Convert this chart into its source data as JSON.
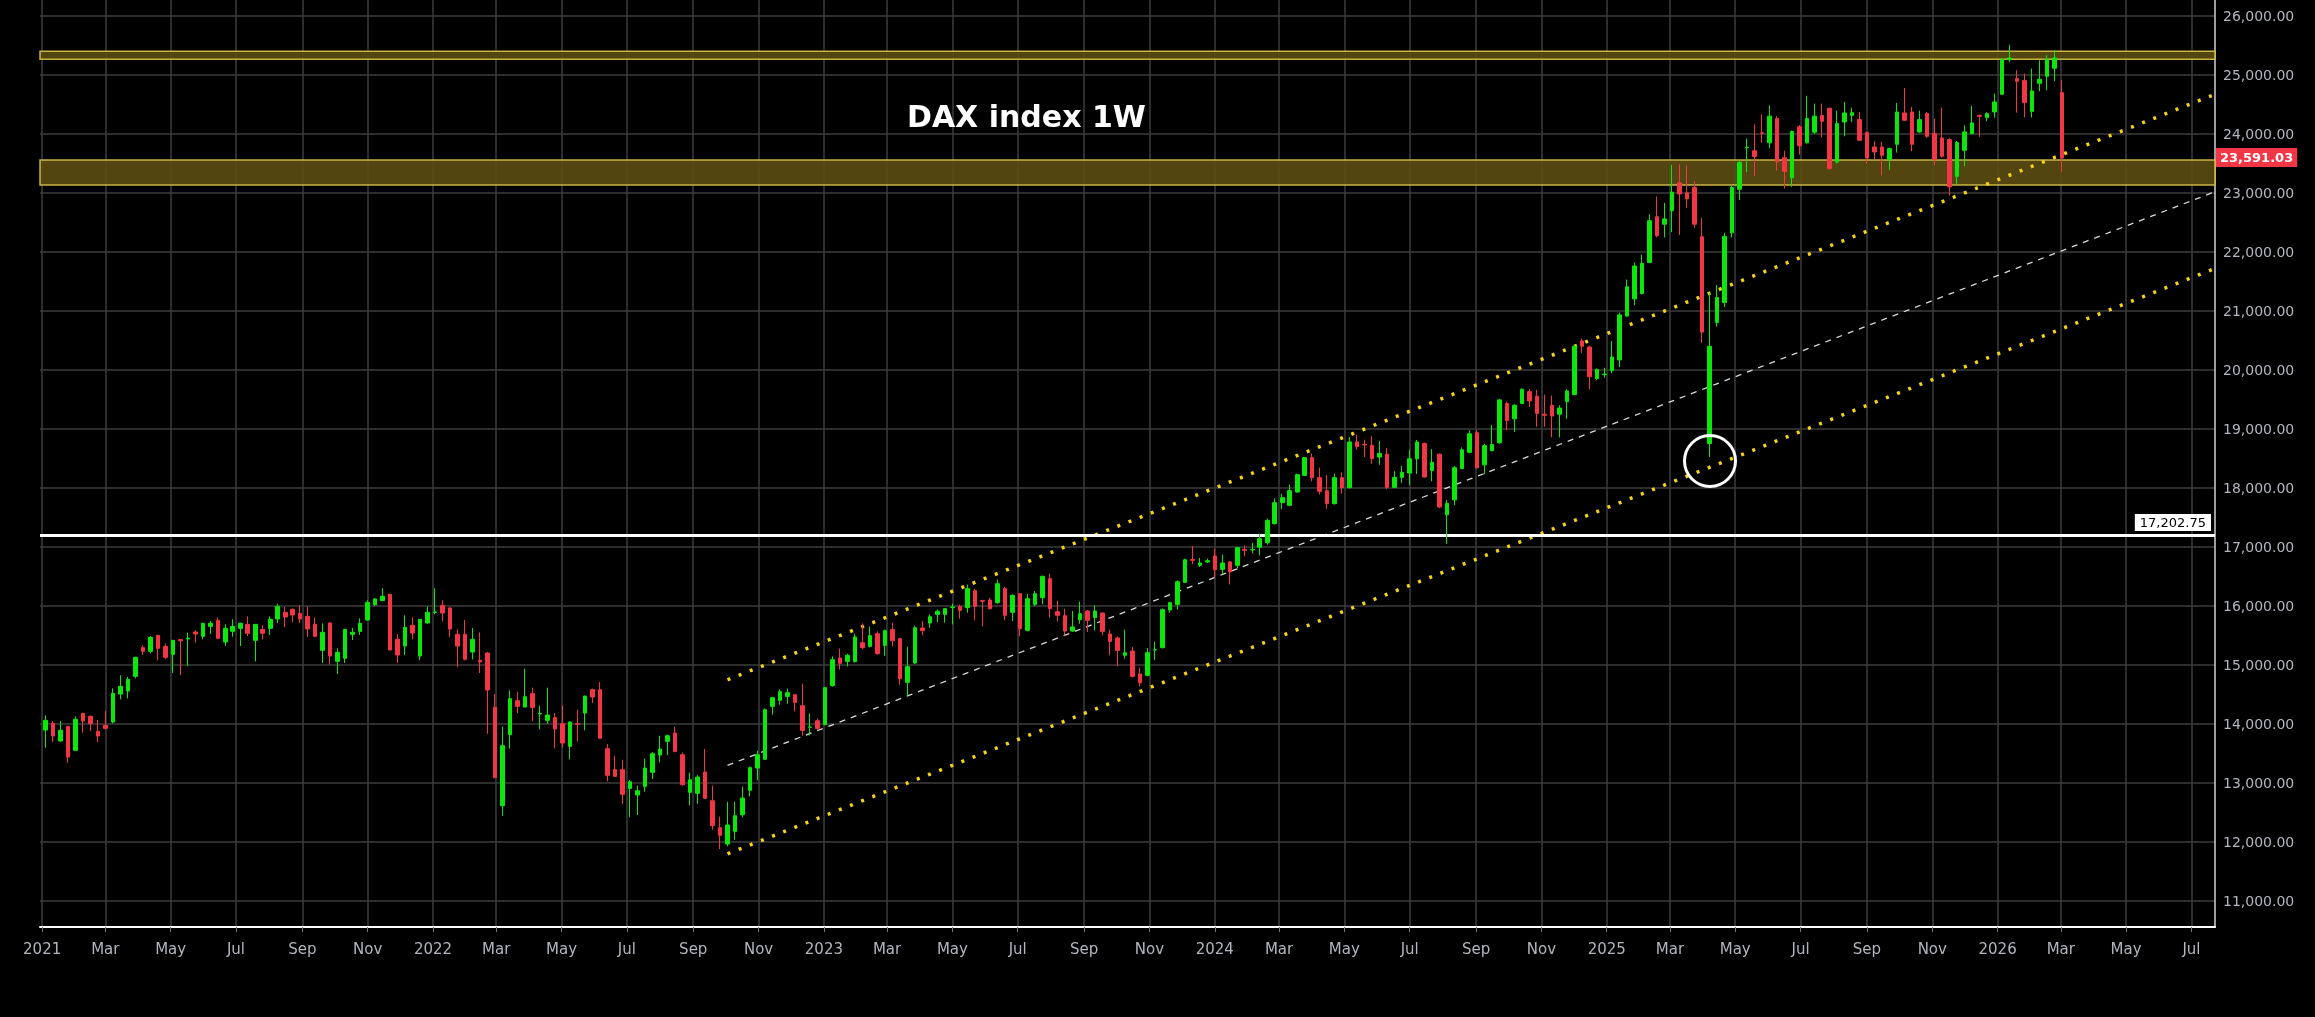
{
  "chart_data": {
    "type": "candlestick",
    "title": "DAX index 1W",
    "x": [
      "2021-01-04",
      "2021-01-11",
      "2021-01-18",
      "2021-01-25",
      "2021-02-01",
      "2021-02-08",
      "2021-02-15",
      "2021-02-22",
      "2021-03-01",
      "2021-03-08",
      "2021-03-15",
      "2021-03-22",
      "2021-03-29",
      "2021-04-05",
      "2021-04-12",
      "2021-04-19",
      "2021-04-26",
      "2021-05-03",
      "2021-05-10",
      "2021-05-17",
      "2021-05-24",
      "2021-05-31",
      "2021-06-07",
      "2021-06-14",
      "2021-06-21",
      "2021-06-28",
      "2021-07-05",
      "2021-07-12",
      "2021-07-19",
      "2021-07-26",
      "2021-08-02",
      "2021-08-09",
      "2021-08-16",
      "2021-08-23",
      "2021-08-30",
      "2021-09-06",
      "2021-09-13",
      "2021-09-20",
      "2021-09-27",
      "2021-10-04",
      "2021-10-11",
      "2021-10-18",
      "2021-10-25",
      "2021-11-01",
      "2021-11-08",
      "2021-11-15",
      "2021-11-22",
      "2021-11-29",
      "2021-12-06",
      "2021-12-13",
      "2021-12-20",
      "2021-12-27",
      "2022-01-03",
      "2022-01-10",
      "2022-01-17",
      "2022-01-24",
      "2022-01-31",
      "2022-02-07",
      "2022-02-14",
      "2022-02-21",
      "2022-02-28",
      "2022-03-07",
      "2022-03-14",
      "2022-03-21",
      "2022-03-28",
      "2022-04-04",
      "2022-04-11",
      "2022-04-18",
      "2022-04-25",
      "2022-05-02",
      "2022-05-09",
      "2022-05-16",
      "2022-05-23",
      "2022-05-30",
      "2022-06-06",
      "2022-06-13",
      "2022-06-20",
      "2022-06-27",
      "2022-07-04",
      "2022-07-11",
      "2022-07-18",
      "2022-07-25",
      "2022-08-01",
      "2022-08-08",
      "2022-08-15",
      "2022-08-22",
      "2022-08-29",
      "2022-09-05",
      "2022-09-12",
      "2022-09-19",
      "2022-09-26",
      "2022-10-03",
      "2022-10-10",
      "2022-10-17",
      "2022-10-24",
      "2022-10-31",
      "2022-11-07",
      "2022-11-14",
      "2022-11-21",
      "2022-11-28",
      "2022-12-05",
      "2022-12-12",
      "2022-12-19",
      "2022-12-26",
      "2023-01-02",
      "2023-01-09",
      "2023-01-16",
      "2023-01-23",
      "2023-01-30",
      "2023-02-06",
      "2023-02-13",
      "2023-02-20",
      "2023-02-27",
      "2023-03-06",
      "2023-03-13",
      "2023-03-20",
      "2023-03-27",
      "2023-04-03",
      "2023-04-10",
      "2023-04-17",
      "2023-04-24",
      "2023-05-01",
      "2023-05-08",
      "2023-05-15",
      "2023-05-22",
      "2023-05-29",
      "2023-06-05",
      "2023-06-12",
      "2023-06-19",
      "2023-06-26",
      "2023-07-03",
      "2023-07-10",
      "2023-07-17",
      "2023-07-24",
      "2023-07-31",
      "2023-08-07",
      "2023-08-14",
      "2023-08-21",
      "2023-08-28",
      "2023-09-04",
      "2023-09-11",
      "2023-09-18",
      "2023-09-25",
      "2023-10-02",
      "2023-10-09",
      "2023-10-16",
      "2023-10-23",
      "2023-10-30",
      "2023-11-06",
      "2023-11-13",
      "2023-11-20",
      "2023-11-27",
      "2023-12-04",
      "2023-12-11",
      "2023-12-18",
      "2023-12-25",
      "2024-01-01",
      "2024-01-08",
      "2024-01-15",
      "2024-01-22",
      "2024-01-29",
      "2024-02-05",
      "2024-02-12",
      "2024-02-19",
      "2024-02-26",
      "2024-03-04",
      "2024-03-11",
      "2024-03-18",
      "2024-03-25",
      "2024-04-01",
      "2024-04-08",
      "2024-04-15",
      "2024-04-22",
      "2024-04-29",
      "2024-05-06",
      "2024-05-13",
      "2024-05-20",
      "2024-05-27",
      "2024-06-03",
      "2024-06-10",
      "2024-06-17",
      "2024-06-24",
      "2024-07-01",
      "2024-07-08",
      "2024-07-15",
      "2024-07-22",
      "2024-07-29",
      "2024-08-05",
      "2024-08-12",
      "2024-08-19",
      "2024-08-26",
      "2024-09-02",
      "2024-09-09",
      "2024-09-16",
      "2024-09-23",
      "2024-09-30",
      "2024-10-07",
      "2024-10-14",
      "2024-10-21",
      "2024-10-28",
      "2024-11-04",
      "2024-11-11",
      "2024-11-18",
      "2024-11-25",
      "2024-12-02",
      "2024-12-09",
      "2024-12-16",
      "2024-12-23",
      "2024-12-30",
      "2025-01-06",
      "2025-01-13",
      "2025-01-20",
      "2025-01-27",
      "2025-02-03",
      "2025-02-10",
      "2025-02-17",
      "2025-02-24",
      "2025-03-03",
      "2025-03-10",
      "2025-03-17",
      "2025-03-24",
      "2025-03-31",
      "2025-04-07",
      "2025-04-14",
      "2025-04-21",
      "2025-04-28",
      "2025-05-05",
      "2025-05-12",
      "2025-05-19",
      "2025-05-26",
      "2025-06-02",
      "2025-06-09",
      "2025-06-16",
      "2025-06-23",
      "2025-06-30",
      "2025-07-07",
      "2025-07-14",
      "2025-07-21",
      "2025-07-28",
      "2025-08-04",
      "2025-08-11",
      "2025-08-18",
      "2025-08-25",
      "2025-09-01",
      "2025-09-08",
      "2025-09-15",
      "2025-09-22",
      "2025-09-29",
      "2025-10-06",
      "2025-10-13",
      "2025-10-20",
      "2025-10-27",
      "2025-11-03",
      "2025-11-10",
      "2025-11-17",
      "2025-11-24",
      "2025-12-01",
      "2025-12-08",
      "2025-12-15",
      "2025-12-22",
      "2025-12-29",
      "2026-01-05",
      "2026-01-12",
      "2026-01-19",
      "2026-01-26",
      "2026-02-02",
      "2026-02-09",
      "2026-02-16",
      "2026-02-23",
      "2026-03-02"
    ],
    "ohlc": [
      [
        13898,
        14147,
        13599,
        14062
      ],
      [
        14011,
        14051,
        13695,
        13796
      ],
      [
        13712,
        14051,
        13700,
        13893
      ],
      [
        13960,
        13970,
        13344,
        13440
      ],
      [
        13554,
        14130,
        13540,
        14079
      ],
      [
        14181,
        14190,
        13853,
        14051
      ],
      [
        14130,
        14147,
        13881,
        14006
      ],
      [
        13876,
        14068,
        13695,
        13796
      ],
      [
        13977,
        14220,
        13909,
        13926
      ],
      [
        14034,
        14604,
        14011,
        14520
      ],
      [
        14508,
        14825,
        14418,
        14638
      ],
      [
        14559,
        14797,
        14435,
        14757
      ],
      [
        14808,
        15140,
        14774,
        15130
      ],
      [
        15294,
        15333,
        15169,
        15232
      ],
      [
        15232,
        15491,
        15198,
        15469
      ],
      [
        15503,
        15510,
        15079,
        15282
      ],
      [
        15316,
        15367,
        15102,
        15130
      ],
      [
        15181,
        15420,
        14864,
        15418
      ],
      [
        15430,
        15440,
        14830,
        15410
      ],
      [
        15440,
        15548,
        14983,
        15455
      ],
      [
        15559,
        15593,
        15378,
        15525
      ],
      [
        15486,
        15718,
        15435,
        15706
      ],
      [
        15655,
        15746,
        15525,
        15706
      ],
      [
        15757,
        15808,
        15435,
        15452
      ],
      [
        15390,
        15689,
        15322,
        15621
      ],
      [
        15570,
        15774,
        15480,
        15655
      ],
      [
        15621,
        15718,
        15322,
        15706
      ],
      [
        15689,
        15825,
        15491,
        15537
      ],
      [
        15418,
        15695,
        15062,
        15689
      ],
      [
        15604,
        15672,
        15435,
        15537
      ],
      [
        15621,
        15825,
        15508,
        15774
      ],
      [
        15780,
        16040,
        15712,
        15994
      ],
      [
        15893,
        15983,
        15644,
        15814
      ],
      [
        15943,
        15960,
        15729,
        15847
      ],
      [
        15876,
        16011,
        15712,
        15780
      ],
      [
        15825,
        15994,
        15475,
        15610
      ],
      [
        15689,
        15808,
        15469,
        15486
      ],
      [
        15249,
        15706,
        15034,
        15554
      ],
      [
        15712,
        15723,
        15006,
        15152
      ],
      [
        15062,
        15282,
        14847,
        15215
      ],
      [
        15113,
        15610,
        15034,
        15604
      ],
      [
        15520,
        15627,
        15424,
        15554
      ],
      [
        15570,
        15791,
        15508,
        15706
      ],
      [
        15763,
        16096,
        15751,
        16062
      ],
      [
        16023,
        16136,
        16000,
        16119
      ],
      [
        16090,
        16299,
        16090,
        16164
      ],
      [
        16198,
        16209,
        15250,
        15254
      ],
      [
        15435,
        15525,
        15034,
        15169
      ],
      [
        15322,
        15842,
        15169,
        15638
      ],
      [
        15672,
        15808,
        15435,
        15542
      ],
      [
        15152,
        15780,
        15085,
        15774
      ],
      [
        15712,
        15994,
        15700,
        15893
      ],
      [
        15890,
        16299,
        15860,
        15900
      ],
      [
        16011,
        16096,
        15740,
        15881
      ],
      [
        15966,
        15980,
        15475,
        15610
      ],
      [
        15520,
        15604,
        14966,
        15322
      ],
      [
        15520,
        15763,
        15079,
        15096
      ],
      [
        15220,
        15627,
        15096,
        15435
      ],
      [
        15079,
        15554,
        14864,
        15051
      ],
      [
        15203,
        15220,
        13836,
        14576
      ],
      [
        14282,
        14508,
        13085,
        13090
      ],
      [
        12616,
        13960,
        12446,
        13633
      ],
      [
        13819,
        14570,
        13582,
        14429
      ],
      [
        14395,
        14548,
        14186,
        14299
      ],
      [
        14288,
        14938,
        14280,
        14463
      ],
      [
        14514,
        14616,
        14045,
        14282
      ],
      [
        14170,
        14311,
        13909,
        14180
      ],
      [
        14062,
        14616,
        14005,
        14152
      ],
      [
        14107,
        14186,
        13587,
        13915
      ],
      [
        14005,
        14316,
        13604,
        13678
      ],
      [
        13621,
        14040,
        13401,
        14034
      ],
      [
        14005,
        14243,
        13706,
        13994
      ],
      [
        14186,
        14480,
        13892,
        14474
      ],
      [
        14582,
        14600,
        14356,
        14458
      ],
      [
        14582,
        14712,
        13750,
        13757
      ],
      [
        13582,
        13661,
        13028,
        13130
      ],
      [
        13226,
        13463,
        13100,
        13113
      ],
      [
        13226,
        13395,
        12644,
        12808
      ],
      [
        12909,
        13050,
        12418,
        13022
      ],
      [
        12797,
        12955,
        12457,
        12870
      ],
      [
        12943,
        13412,
        12853,
        13254
      ],
      [
        13181,
        13525,
        13068,
        13497
      ],
      [
        13474,
        13802,
        13350,
        13576
      ],
      [
        13706,
        13820,
        13474,
        13802
      ],
      [
        13847,
        13954,
        13520,
        13536
      ],
      [
        13480,
        13520,
        12955,
        12972
      ],
      [
        12842,
        13175,
        12622,
        13056
      ],
      [
        12825,
        13135,
        12650,
        13101
      ],
      [
        13186,
        13576,
        12728,
        12740
      ],
      [
        12700,
        12955,
        12209,
        12277
      ],
      [
        12243,
        12429,
        11881,
        12113
      ],
      [
        11966,
        12683,
        11926,
        12288
      ],
      [
        12180,
        12683,
        12039,
        12446
      ],
      [
        12463,
        12938,
        12418,
        12746
      ],
      [
        12876,
        13280,
        12774,
        13260
      ],
      [
        13254,
        13548,
        13045,
        13480
      ],
      [
        13401,
        14265,
        13390,
        14243
      ],
      [
        14299,
        14463,
        14158,
        14446
      ],
      [
        14401,
        14587,
        14328,
        14548
      ],
      [
        14468,
        14599,
        14344,
        14531
      ],
      [
        14497,
        14510,
        14215,
        14367
      ],
      [
        14311,
        14684,
        13802,
        13892
      ],
      [
        13945,
        14175,
        13808,
        13950
      ],
      [
        14056,
        14096,
        13900,
        13926
      ],
      [
        13989,
        14620,
        13980,
        14616
      ],
      [
        14650,
        15147,
        14633,
        15090
      ],
      [
        15119,
        15277,
        14921,
        15028
      ],
      [
        15062,
        15192,
        14977,
        15164
      ],
      [
        15057,
        15531,
        15040,
        15474
      ],
      [
        15378,
        15706,
        15271,
        15294
      ],
      [
        15316,
        15650,
        15300,
        15497
      ],
      [
        15531,
        15570,
        15175,
        15192
      ],
      [
        15333,
        15599,
        15158,
        15582
      ],
      [
        15599,
        15717,
        15316,
        15412
      ],
      [
        15446,
        15460,
        14667,
        14768
      ],
      [
        14706,
        15311,
        14480,
        14972
      ],
      [
        15034,
        15667,
        15020,
        15633
      ],
      [
        15627,
        15746,
        15503,
        15582
      ],
      [
        15712,
        15859,
        15633,
        15819
      ],
      [
        15858,
        15938,
        15729,
        15910
      ],
      [
        15858,
        15960,
        15717,
        15955
      ],
      [
        15975,
        16040,
        15689,
        15983
      ],
      [
        15989,
        16022,
        15785,
        15926
      ],
      [
        15972,
        16361,
        15887,
        16294
      ],
      [
        16260,
        16294,
        15757,
        15994
      ],
      [
        16090,
        16107,
        15655,
        16080
      ],
      [
        16101,
        16141,
        15938,
        15955
      ],
      [
        16056,
        16446,
        16040,
        16378
      ],
      [
        16294,
        16322,
        15757,
        15842
      ],
      [
        15893,
        16198,
        15746,
        16181
      ],
      [
        16209,
        16220,
        15486,
        15616
      ],
      [
        15587,
        16209,
        15570,
        16124
      ],
      [
        16028,
        16254,
        16000,
        16209
      ],
      [
        16141,
        16514,
        16028,
        16503
      ],
      [
        16463,
        16548,
        15802,
        15955
      ],
      [
        15904,
        16090,
        15740,
        15842
      ],
      [
        15836,
        15955,
        15503,
        15576
      ],
      [
        15576,
        15915,
        15560,
        15644
      ],
      [
        15768,
        16073,
        15700,
        15870
      ],
      [
        15915,
        15930,
        15559,
        15757
      ],
      [
        15802,
        16011,
        15587,
        15915
      ],
      [
        15881,
        15890,
        15503,
        15570
      ],
      [
        15525,
        15598,
        15164,
        15401
      ],
      [
        15458,
        15486,
        14977,
        15248
      ],
      [
        15164,
        15598,
        15107,
        15209
      ],
      [
        15237,
        15305,
        14790,
        14808
      ],
      [
        14847,
        14955,
        14638,
        14700
      ],
      [
        14825,
        15288,
        14810,
        15209
      ],
      [
        15255,
        15390,
        15090,
        15260
      ],
      [
        15294,
        15960,
        15280,
        15938
      ],
      [
        15932,
        16073,
        15887,
        16056
      ],
      [
        16028,
        16435,
        15938,
        16412
      ],
      [
        16401,
        16802,
        16390,
        16785
      ],
      [
        16790,
        17017,
        16706,
        16774
      ],
      [
        16689,
        16813,
        16661,
        16729
      ],
      [
        16746,
        16802,
        16729,
        16768
      ],
      [
        16847,
        16972,
        16480,
        16616
      ],
      [
        16621,
        16870,
        16537,
        16729
      ],
      [
        16746,
        16760,
        16367,
        16576
      ],
      [
        16689,
        17000,
        16638,
        16989
      ],
      [
        16960,
        17022,
        16842,
        16943
      ],
      [
        16950,
        17068,
        16893,
        16960
      ],
      [
        16994,
        17226,
        16859,
        17141
      ],
      [
        17073,
        17480,
        17040,
        17452
      ],
      [
        17395,
        17825,
        17380,
        17751
      ],
      [
        17751,
        17904,
        17638,
        17836
      ],
      [
        17706,
        18056,
        17690,
        17955
      ],
      [
        17932,
        18243,
        17920,
        18226
      ],
      [
        18214,
        18525,
        18200,
        18514
      ],
      [
        18514,
        18582,
        18113,
        18175
      ],
      [
        18175,
        18345,
        17893,
        17943
      ],
      [
        17955,
        18215,
        17650,
        17734
      ],
      [
        17734,
        18243,
        17720,
        18175
      ],
      [
        18175,
        18265,
        17904,
        18006
      ],
      [
        18006,
        18865,
        17990,
        18780
      ],
      [
        18780,
        18904,
        18650,
        18700
      ],
      [
        18740,
        18820,
        18525,
        18730
      ],
      [
        18723,
        18876,
        18412,
        18497
      ],
      [
        18525,
        18797,
        18392,
        18585
      ],
      [
        18573,
        18676,
        17980,
        18011
      ],
      [
        18011,
        18283,
        17998,
        18180
      ],
      [
        18180,
        18374,
        18083,
        18265
      ],
      [
        18253,
        18646,
        18053,
        18495
      ],
      [
        18495,
        18815,
        18234,
        18779
      ],
      [
        18755,
        18767,
        18174,
        18186
      ],
      [
        18295,
        18658,
        18113,
        18434
      ],
      [
        18573,
        18585,
        17660,
        17678
      ],
      [
        17545,
        17799,
        17055,
        17739
      ],
      [
        17799,
        18374,
        17708,
        18343
      ],
      [
        18331,
        18688,
        18320,
        18646
      ],
      [
        18604,
        18978,
        18590,
        18918
      ],
      [
        18936,
        18978,
        18325,
        18343
      ],
      [
        18392,
        18749,
        18234,
        18718
      ],
      [
        18633,
        19069,
        18620,
        18736
      ],
      [
        18767,
        19511,
        18750,
        19493
      ],
      [
        19432,
        19462,
        18978,
        19142
      ],
      [
        19172,
        19420,
        18948,
        19402
      ],
      [
        19432,
        19686,
        19420,
        19674
      ],
      [
        19632,
        19674,
        19372,
        19475
      ],
      [
        19553,
        19662,
        19039,
        19263
      ],
      [
        19250,
        19583,
        19039,
        19232
      ],
      [
        19402,
        19565,
        18858,
        19220
      ],
      [
        19250,
        19402,
        18858,
        19354
      ],
      [
        19462,
        19674,
        19172,
        19644
      ],
      [
        19583,
        20430,
        19570,
        20400
      ],
      [
        20491,
        20533,
        20291,
        20400
      ],
      [
        20388,
        20412,
        19674,
        19886
      ],
      [
        19856,
        20025,
        19826,
        20007
      ],
      [
        19920,
        20037,
        19868,
        19930
      ],
      [
        19989,
        20491,
        19947,
        20219
      ],
      [
        20170,
        20975,
        20049,
        20933
      ],
      [
        20914,
        21532,
        20900,
        21411
      ],
      [
        21205,
        21822,
        21096,
        21762
      ],
      [
        21296,
        21955,
        21278,
        21805
      ],
      [
        21822,
        22639,
        21810,
        22530
      ],
      [
        22596,
        22941,
        22246,
        22276
      ],
      [
        22470,
        22832,
        22246,
        22560
      ],
      [
        22699,
        23476,
        22336,
        23014
      ],
      [
        23171,
        23486,
        22288,
        22984
      ],
      [
        23002,
        23470,
        22748,
        22899
      ],
      [
        23093,
        23201,
        22409,
        22470
      ],
      [
        22258,
        22578,
        20461,
        20642
      ],
      [
        18755,
        21308,
        18525,
        20400
      ],
      [
        20806,
        21441,
        20733,
        21229
      ],
      [
        21144,
        22324,
        21066,
        22264
      ],
      [
        22324,
        23135,
        22246,
        23093
      ],
      [
        23062,
        23558,
        22881,
        23516
      ],
      [
        23765,
        23921,
        23353,
        23775
      ],
      [
        23716,
        24163,
        23292,
        23619
      ],
      [
        24020,
        24333,
        23850,
        24010
      ],
      [
        23850,
        24484,
        23758,
        24302
      ],
      [
        24260,
        24302,
        23377,
        23528
      ],
      [
        23595,
        23716,
        23074,
        23365
      ],
      [
        23256,
        24060,
        23105,
        24042
      ],
      [
        24121,
        24151,
        23649,
        23800
      ],
      [
        23850,
        24647,
        23837,
        24260
      ],
      [
        24030,
        24514,
        24000,
        24302
      ],
      [
        24311,
        24514,
        23943,
        24215
      ],
      [
        24435,
        24446,
        23401,
        23412
      ],
      [
        23525,
        24395,
        23500,
        24175
      ],
      [
        24203,
        24542,
        23960,
        24356
      ],
      [
        24316,
        24446,
        24203,
        24361
      ],
      [
        24243,
        24373,
        23880,
        23893
      ],
      [
        24023,
        24040,
        23497,
        23593
      ],
      [
        23780,
        23876,
        23565,
        23695
      ],
      [
        23780,
        23864,
        23299,
        23638
      ],
      [
        23565,
        23768,
        23395,
        23751
      ],
      [
        23825,
        24525,
        23683,
        24373
      ],
      [
        24356,
        24780,
        24220,
        24232
      ],
      [
        24373,
        24458,
        23706,
        23825
      ],
      [
        24034,
        24395,
        24020,
        24243
      ],
      [
        24345,
        24373,
        23932,
        23960
      ],
      [
        24006,
        24260,
        23469,
        23570
      ],
      [
        23932,
        24446,
        23600,
        23621
      ],
      [
        23904,
        23932,
        22960,
        23102
      ],
      [
        23282,
        23881,
        23147,
        23853
      ],
      [
        23723,
        24147,
        23452,
        24034
      ],
      [
        24006,
        24474,
        23990,
        24187
      ],
      [
        24316,
        24328,
        23949,
        24299
      ],
      [
        24277,
        24367,
        24215,
        24345
      ],
      [
        24373,
        24684,
        24277,
        24542
      ],
      [
        24672,
        25288,
        24660,
        25260
      ],
      [
        25260,
        25514,
        25220,
        25288
      ],
      [
        24938,
        25079,
        24361,
        24893
      ],
      [
        24904,
        25023,
        24282,
        24531
      ],
      [
        24384,
        25107,
        24282,
        24729
      ],
      [
        24859,
        25249,
        24723,
        24926
      ],
      [
        24977,
        25333,
        24740,
        25265
      ],
      [
        25113,
        25418,
        24893,
        25288
      ],
      [
        24700,
        24910,
        23356,
        23591.03
      ]
    ],
    "series": [
      {
        "type": "line",
        "x": [
          "2022-10-03",
          "2026-07-20"
        ],
        "values": [
          14750,
          24650
        ],
        "color": "#f5d415",
        "line_style": "dotted"
      },
      {
        "type": "line",
        "x": [
          "2022-10-03",
          "2026-07-20"
        ],
        "values": [
          13300,
          23000
        ],
        "color": "#d9d9d9",
        "line_style": "dashed"
      },
      {
        "type": "line",
        "x": [
          "2022-10-03",
          "2026-07-20"
        ],
        "values": [
          11800,
          21700
        ],
        "color": "#f5d415",
        "line_style": "dotted"
      }
    ],
    "ref_lines": [
      {
        "axis": "y",
        "value": 17202.75,
        "label": "17,202.75",
        "color": "#ffffff"
      }
    ],
    "bands": [
      {
        "axis": "y",
        "from": 23135,
        "to": 23558,
        "color": "#5c4d12"
      },
      {
        "axis": "y",
        "from": 25266,
        "to": 25401,
        "color": "#5c4d12"
      }
    ],
    "annotations": [
      {
        "text": "23,591.03",
        "x": "2026-07-23",
        "y": 23591.03
      }
    ],
    "xlim": [
      "2020-12-30",
      "2026-07-23"
    ],
    "xticks": [
      {
        "value": "2021-01",
        "label": "2021"
      },
      {
        "value": "2021-03",
        "label": "Mar"
      },
      {
        "value": "2021-05",
        "label": "May"
      },
      {
        "value": "2021-07",
        "label": "Jul"
      },
      {
        "value": "2021-09",
        "label": "Sep"
      },
      {
        "value": "2021-11",
        "label": "Nov"
      },
      {
        "value": "2022-01",
        "label": "2022"
      },
      {
        "value": "2022-03",
        "label": "Mar"
      },
      {
        "value": "2022-05",
        "label": "May"
      },
      {
        "value": "2022-07",
        "label": "Jul"
      },
      {
        "value": "2022-09",
        "label": "Sep"
      },
      {
        "value": "2022-11",
        "label": "Nov"
      },
      {
        "value": "2023-01",
        "label": "2023"
      },
      {
        "value": "2023-03",
        "label": "Mar"
      },
      {
        "value": "2023-05",
        "label": "May"
      },
      {
        "value": "2023-07",
        "label": "Jul"
      },
      {
        "value": "2023-09",
        "label": "Sep"
      },
      {
        "value": "2023-11",
        "label": "Nov"
      },
      {
        "value": "2024-01",
        "label": "2024"
      },
      {
        "value": "2024-03",
        "label": "Mar"
      },
      {
        "value": "2024-05",
        "label": "May"
      },
      {
        "value": "2024-07",
        "label": "Jul"
      },
      {
        "value": "2024-09",
        "label": "Sep"
      },
      {
        "value": "2024-11",
        "label": "Nov"
      },
      {
        "value": "2025-01",
        "label": "2025"
      },
      {
        "value": "2025-03",
        "label": "Mar"
      },
      {
        "value": "2025-05",
        "label": "May"
      },
      {
        "value": "2025-07",
        "label": "Jul"
      },
      {
        "value": "2025-09",
        "label": "Sep"
      },
      {
        "value": "2025-11",
        "label": "Nov"
      },
      {
        "value": "2026-01",
        "label": "2026"
      },
      {
        "value": "2026-03",
        "label": "Mar"
      },
      {
        "value": "2026-05",
        "label": "May"
      },
      {
        "value": "2026-07",
        "label": "Jul"
      }
    ],
    "ylim": [
      10560,
      26270
    ],
    "yticks": [
      {
        "value": 11000,
        "label": "11,000.00"
      },
      {
        "value": 12000,
        "label": "12,000.00"
      },
      {
        "value": 13000,
        "label": "13,000.00"
      },
      {
        "value": 14000,
        "label": "14,000.00"
      },
      {
        "value": 15000,
        "label": "15,000.00"
      },
      {
        "value": 16000,
        "label": "16,000.00"
      },
      {
        "value": 17000,
        "label": "17,000.00"
      },
      {
        "value": 18000,
        "label": "18,000.00"
      },
      {
        "value": 19000,
        "label": "19,000.00"
      },
      {
        "value": 20000,
        "label": "20,000.00"
      },
      {
        "value": 21000,
        "label": "21,000.00"
      },
      {
        "value": 22000,
        "label": "22,000.00"
      },
      {
        "value": 23000,
        "label": "23,000.00"
      },
      {
        "value": 24000,
        "label": "24,000.00"
      },
      {
        "value": 25000,
        "label": "25,000.00"
      },
      {
        "value": 26000,
        "label": "26,000.00"
      }
    ],
    "grid": true,
    "marker": "none"
  }
}
